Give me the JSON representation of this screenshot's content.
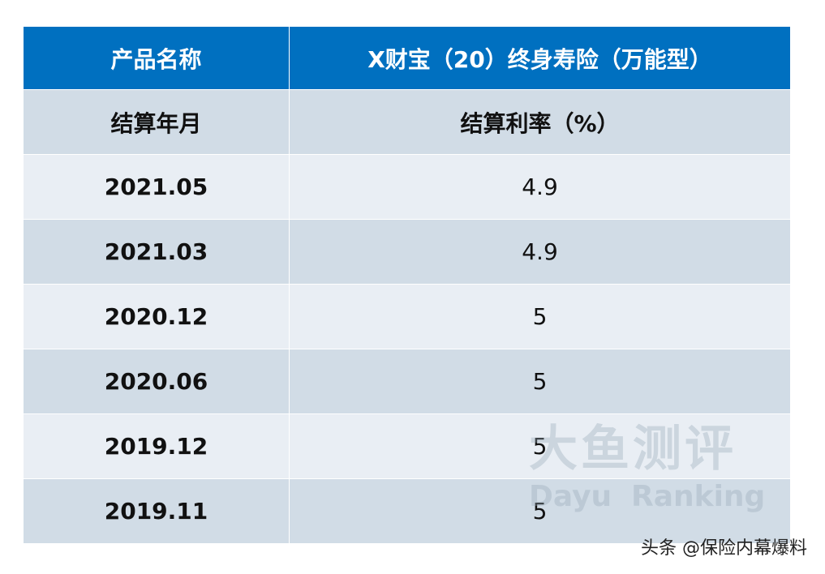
{
  "table": {
    "header": [
      "产品名称",
      "X财宝（20）终身寿险（万能型）"
    ],
    "subheader": [
      "结算年月",
      "结算利率（%）"
    ],
    "rows": [
      [
        "2021.05",
        4.9
      ],
      [
        "2021.03",
        4.9
      ],
      [
        "2020.12",
        5
      ],
      [
        "2020.06",
        5
      ],
      [
        "2019.12",
        5
      ],
      [
        "2019.11",
        5
      ]
    ]
  },
  "watermark": {
    "title": "大鱼测评",
    "subtitle_left": "Dayu",
    "subtitle_right": "Ranking"
  },
  "footer": "头条 @保险内幕爆料"
}
